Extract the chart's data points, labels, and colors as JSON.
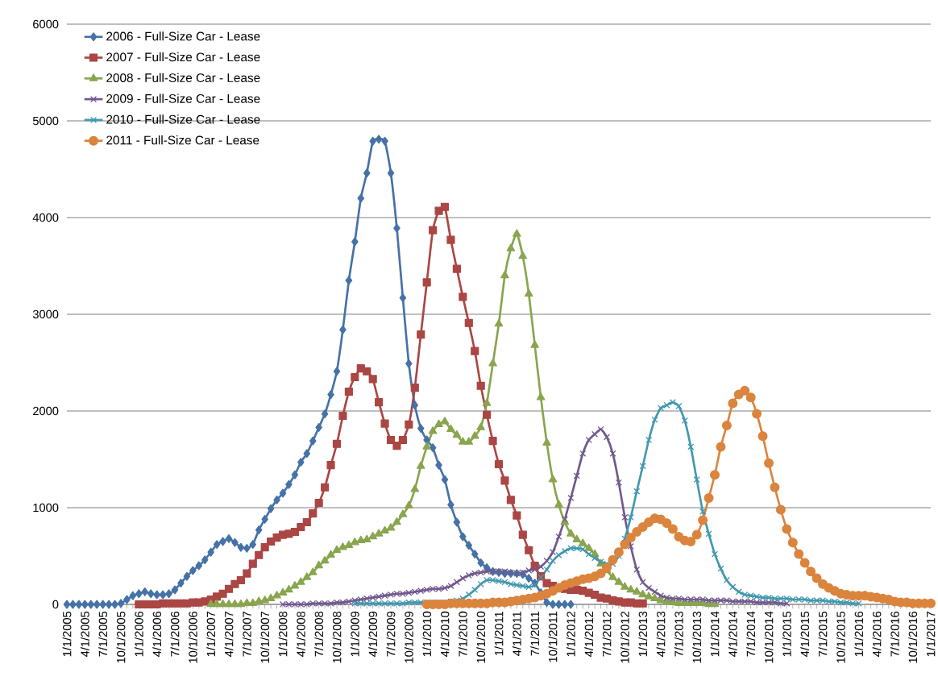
{
  "chart_data": {
    "type": "line",
    "grid": "y",
    "legend": "top left",
    "ylim": [
      0,
      6000
    ],
    "yticks": [
      0,
      1000,
      2000,
      3000,
      4000,
      5000,
      6000
    ],
    "categories": [
      "1/1/2005",
      null,
      null,
      "4/1/2005",
      null,
      null,
      "7/1/2005",
      null,
      null,
      "10/1/2005",
      null,
      null,
      "1/1/2006",
      null,
      null,
      "4/1/2006",
      null,
      null,
      "7/1/2006",
      null,
      null,
      "10/1/2006",
      null,
      null,
      "1/1/2007",
      null,
      null,
      "4/1/2007",
      null,
      null,
      "7/1/2007",
      null,
      null,
      "10/1/2007",
      null,
      null,
      "1/1/2008",
      null,
      null,
      "4/1/2008",
      null,
      null,
      "7/1/2008",
      null,
      null,
      "10/1/2008",
      null,
      null,
      "1/1/2009",
      null,
      null,
      "4/1/2009",
      null,
      null,
      "7/1/2009",
      null,
      null,
      "10/1/2009",
      null,
      null,
      "1/1/2010",
      null,
      null,
      "4/1/2010",
      null,
      null,
      "7/1/2010",
      null,
      null,
      "10/1/2010",
      null,
      null,
      "1/1/2011",
      null,
      null,
      "4/1/2011",
      null,
      null,
      "7/1/2011",
      null,
      null,
      "10/1/2011",
      null,
      null,
      "1/1/2012",
      null,
      null,
      "4/1/2012",
      null,
      null,
      "7/1/2012",
      null,
      null,
      "10/1/2012",
      null,
      null,
      "1/1/2013",
      null,
      null,
      "4/1/2013",
      null,
      null,
      "7/1/2013",
      null,
      null,
      "10/1/2013",
      null,
      null,
      "1/1/2014",
      null,
      null,
      "4/1/2014",
      null,
      null,
      "7/1/2014",
      null,
      null,
      "10/1/2014",
      null,
      null,
      "1/1/2015",
      null,
      null,
      "4/1/2015",
      null,
      null,
      "7/1/2015",
      null,
      null,
      "10/1/2015",
      null,
      null,
      "1/1/2016",
      null,
      null,
      "4/1/2016",
      null,
      null,
      "7/1/2016",
      null,
      null,
      "10/1/2016",
      null,
      null,
      "1/1/2017"
    ],
    "series": [
      {
        "name": "2006 - Full-Size Car - Lease",
        "color": "#4572a7",
        "marker": "diamond",
        "values": [
          0,
          0,
          0,
          0,
          0,
          0,
          0,
          0,
          0,
          10,
          50,
          90,
          110,
          130,
          110,
          100,
          100,
          110,
          150,
          220,
          290,
          350,
          400,
          460,
          540,
          620,
          650,
          680,
          640,
          590,
          580,
          620,
          770,
          880,
          990,
          1080,
          1150,
          1240,
          1340,
          1470,
          1560,
          1690,
          1830,
          1970,
          2170,
          2410,
          2840,
          3350,
          3750,
          4200,
          4460,
          4790,
          4810,
          4790,
          4460,
          3890,
          3170,
          2490,
          2060,
          1820,
          1700,
          1620,
          1440,
          1290,
          1030,
          850,
          700,
          610,
          520,
          430,
          380,
          340,
          330,
          320,
          320,
          320,
          310,
          270,
          220,
          120,
          20,
          0,
          0,
          0,
          0,
          null,
          null,
          null,
          null,
          null,
          null,
          null,
          null,
          null,
          null,
          null,
          null,
          null,
          null,
          null,
          null,
          null,
          null,
          null,
          null,
          null,
          null,
          null,
          null,
          null,
          null,
          null,
          null,
          null,
          null,
          null,
          null,
          null,
          null,
          null,
          null,
          null,
          null,
          null,
          null,
          null,
          null,
          null,
          null,
          null,
          null,
          null,
          null,
          null,
          null,
          null,
          null,
          null,
          null,
          null,
          null,
          null,
          null,
          null,
          null
        ]
      },
      {
        "name": "2007 - Full-Size Car - Lease",
        "color": "#aa4643",
        "marker": "square",
        "values": [
          null,
          null,
          null,
          null,
          null,
          null,
          null,
          null,
          null,
          null,
          null,
          null,
          0,
          0,
          0,
          0,
          10,
          10,
          10,
          10,
          10,
          20,
          20,
          30,
          50,
          80,
          110,
          160,
          210,
          250,
          320,
          420,
          510,
          590,
          650,
          690,
          720,
          730,
          750,
          800,
          850,
          940,
          1050,
          1210,
          1440,
          1660,
          1950,
          2200,
          2350,
          2440,
          2410,
          2330,
          2090,
          1870,
          1700,
          1640,
          1700,
          1860,
          2240,
          2790,
          3330,
          3870,
          4070,
          4110,
          3770,
          3470,
          3180,
          2910,
          2620,
          2260,
          1960,
          1690,
          1450,
          1280,
          1080,
          920,
          720,
          560,
          400,
          290,
          220,
          190,
          170,
          160,
          150,
          150,
          140,
          120,
          100,
          70,
          60,
          40,
          30,
          20,
          20,
          10,
          10,
          null,
          null,
          null,
          null,
          null,
          null,
          null,
          null,
          null,
          null,
          null,
          null,
          null,
          null,
          null,
          null,
          null,
          null,
          null,
          null,
          null,
          null,
          null,
          null,
          null,
          null,
          null,
          null,
          null,
          null,
          null,
          null,
          null,
          null,
          null,
          null,
          null,
          null,
          null,
          null,
          null,
          null,
          null,
          null,
          null,
          null,
          null,
          null
        ]
      },
      {
        "name": "2008 - Full-Size Car - Lease",
        "color": "#89a54e",
        "marker": "triangle",
        "values": [
          null,
          null,
          null,
          null,
          null,
          null,
          null,
          null,
          null,
          null,
          null,
          null,
          null,
          null,
          null,
          null,
          null,
          null,
          null,
          null,
          null,
          null,
          null,
          null,
          0,
          0,
          0,
          0,
          0,
          0,
          10,
          10,
          30,
          40,
          60,
          90,
          120,
          150,
          190,
          230,
          280,
          330,
          400,
          450,
          510,
          560,
          590,
          610,
          640,
          660,
          670,
          700,
          730,
          760,
          790,
          850,
          930,
          1020,
          1190,
          1430,
          1630,
          1790,
          1860,
          1890,
          1810,
          1750,
          1680,
          1680,
          1740,
          1830,
          2080,
          2490,
          2900,
          3400,
          3680,
          3830,
          3600,
          3210,
          2680,
          2140,
          1670,
          1290,
          1030,
          850,
          730,
          670,
          630,
          580,
          520,
          420,
          350,
          280,
          230,
          180,
          150,
          130,
          100,
          80,
          60,
          40,
          30,
          20,
          10,
          10,
          10,
          10,
          10,
          0,
          0,
          null,
          null,
          null,
          null,
          null,
          null,
          null,
          null,
          null,
          null,
          null,
          null,
          null,
          null,
          null,
          null,
          null,
          null,
          null,
          null,
          null,
          null,
          null,
          null,
          null,
          null,
          null,
          null,
          null,
          null,
          null,
          null,
          null,
          null,
          null,
          null
        ]
      },
      {
        "name": "2009 - Full-Size Car - Lease",
        "color": "#71588f",
        "marker": "cross",
        "values": [
          null,
          null,
          null,
          null,
          null,
          null,
          null,
          null,
          null,
          null,
          null,
          null,
          null,
          null,
          null,
          null,
          null,
          null,
          null,
          null,
          null,
          null,
          null,
          null,
          null,
          null,
          null,
          null,
          null,
          null,
          null,
          null,
          null,
          null,
          null,
          null,
          0,
          0,
          0,
          0,
          0,
          10,
          10,
          10,
          10,
          20,
          20,
          30,
          40,
          50,
          60,
          70,
          80,
          90,
          100,
          110,
          110,
          120,
          130,
          140,
          150,
          160,
          160,
          170,
          190,
          230,
          270,
          300,
          320,
          330,
          340,
          340,
          340,
          340,
          330,
          320,
          330,
          350,
          360,
          390,
          450,
          540,
          700,
          880,
          1100,
          1330,
          1560,
          1700,
          1760,
          1810,
          1730,
          1560,
          1260,
          900,
          600,
          360,
          230,
          170,
          130,
          90,
          70,
          60,
          60,
          50,
          50,
          50,
          50,
          40,
          40,
          40,
          40,
          30,
          30,
          30,
          30,
          20,
          20,
          20,
          20,
          10,
          10,
          null,
          null,
          null,
          null,
          null,
          null,
          null,
          null,
          null,
          null,
          null,
          null,
          null,
          null,
          null,
          null,
          null,
          null,
          null,
          null,
          null,
          null,
          null,
          null
        ]
      },
      {
        "name": "2010 - Full-Size Car - Lease",
        "color": "#4198af",
        "marker": "cross",
        "values": [
          null,
          null,
          null,
          null,
          null,
          null,
          null,
          null,
          null,
          null,
          null,
          null,
          null,
          null,
          null,
          null,
          null,
          null,
          null,
          null,
          null,
          null,
          null,
          null,
          null,
          null,
          null,
          null,
          null,
          null,
          null,
          null,
          null,
          null,
          null,
          null,
          null,
          null,
          null,
          null,
          null,
          null,
          null,
          null,
          null,
          null,
          null,
          null,
          10,
          10,
          10,
          10,
          10,
          10,
          10,
          10,
          10,
          20,
          20,
          20,
          20,
          20,
          20,
          20,
          30,
          40,
          60,
          100,
          150,
          210,
          250,
          250,
          240,
          230,
          210,
          200,
          190,
          180,
          200,
          280,
          360,
          450,
          510,
          550,
          580,
          580,
          570,
          520,
          480,
          440,
          420,
          420,
          500,
          680,
          900,
          1170,
          1430,
          1700,
          1910,
          2030,
          2060,
          2090,
          2050,
          1900,
          1630,
          1290,
          960,
          730,
          520,
          370,
          250,
          180,
          130,
          100,
          90,
          80,
          70,
          70,
          60,
          60,
          60,
          50,
          50,
          50,
          40,
          40,
          40,
          30,
          30,
          20,
          20,
          10,
          10,
          null,
          null,
          null,
          null,
          null,
          null,
          null,
          null,
          null,
          null,
          null,
          null
        ]
      },
      {
        "name": "2011 - Full-Size Car - Lease",
        "color": "#db843d",
        "marker": "circle",
        "values": [
          null,
          null,
          null,
          null,
          null,
          null,
          null,
          null,
          null,
          null,
          null,
          null,
          null,
          null,
          null,
          null,
          null,
          null,
          null,
          null,
          null,
          null,
          null,
          null,
          null,
          null,
          null,
          null,
          null,
          null,
          null,
          null,
          null,
          null,
          null,
          null,
          null,
          null,
          null,
          null,
          null,
          null,
          null,
          null,
          null,
          null,
          null,
          null,
          null,
          null,
          null,
          null,
          null,
          null,
          null,
          null,
          null,
          null,
          null,
          null,
          0,
          0,
          0,
          0,
          10,
          10,
          10,
          10,
          10,
          10,
          10,
          20,
          20,
          20,
          30,
          40,
          50,
          60,
          70,
          90,
          110,
          140,
          170,
          200,
          220,
          240,
          260,
          270,
          290,
          320,
          380,
          460,
          540,
          620,
          690,
          750,
          800,
          850,
          890,
          880,
          840,
          780,
          700,
          660,
          650,
          720,
          870,
          1100,
          1340,
          1630,
          1850,
          2080,
          2170,
          2210,
          2140,
          1970,
          1740,
          1460,
          1210,
          980,
          780,
          640,
          520,
          430,
          340,
          270,
          210,
          170,
          140,
          110,
          100,
          90,
          90,
          90,
          80,
          70,
          60,
          50,
          30,
          20,
          20,
          10,
          10,
          10,
          10
        ]
      }
    ]
  }
}
